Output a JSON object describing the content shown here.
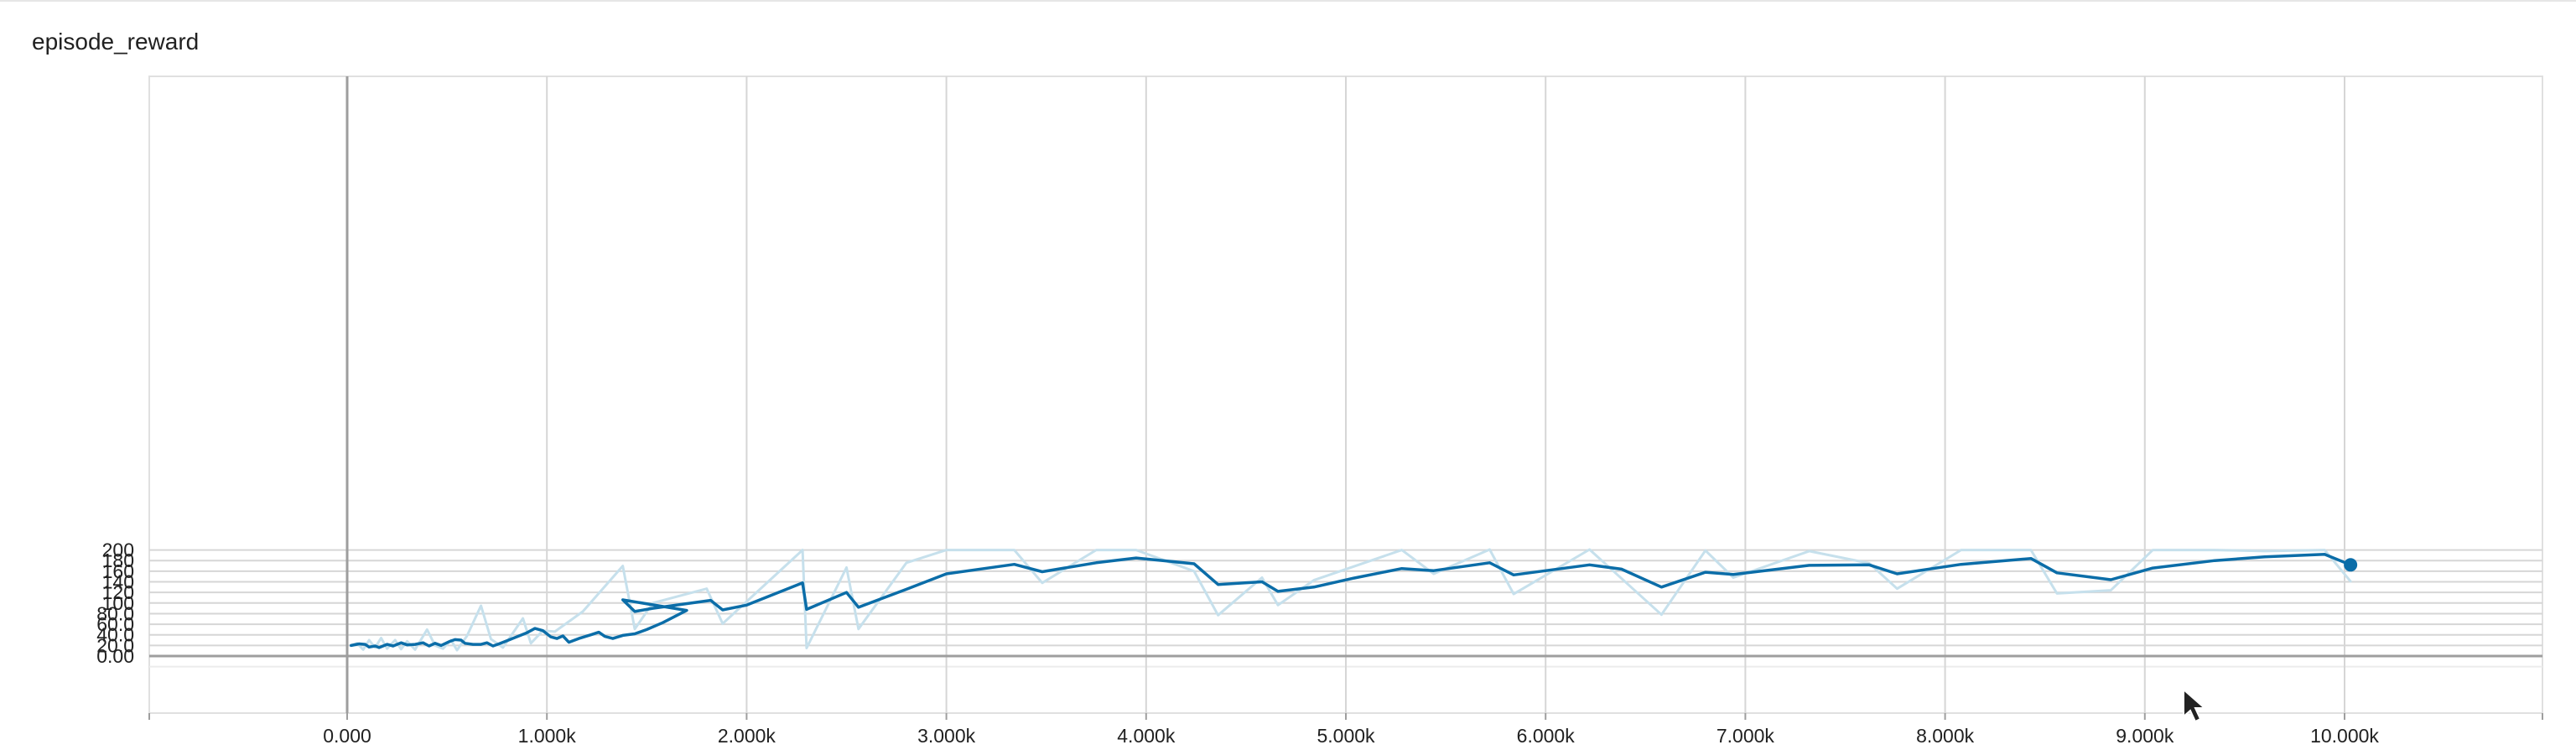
{
  "chart_data": {
    "type": "line",
    "title": "episode_reward",
    "xlabel": "",
    "ylabel": "",
    "xlim": [
      -1000,
      11100
    ],
    "ylim": [
      -20,
      220
    ],
    "grid": true,
    "x_ticks": [
      0,
      1000,
      2000,
      3000,
      4000,
      5000,
      6000,
      7000,
      8000,
      9000,
      10000
    ],
    "x_tick_labels": [
      "0.000",
      "1.000k",
      "2.000k",
      "3.000k",
      "4.000k",
      "5.000k",
      "6.000k",
      "7.000k",
      "8.000k",
      "9.000k",
      "10.000k"
    ],
    "y_ticks": [
      0,
      20,
      40,
      60,
      80,
      100,
      120,
      140,
      160,
      180,
      200
    ],
    "y_tick_labels": [
      "0.00",
      "20.0",
      "40.0",
      "60.0",
      "80.0",
      "100",
      "120",
      "140",
      "160",
      "180",
      "200"
    ],
    "series": [
      {
        "role": "raw",
        "color": "#c6e0ec",
        "points": [
          [
            20,
            20
          ],
          [
            50,
            24
          ],
          [
            80,
            12
          ],
          [
            110,
            30
          ],
          [
            140,
            16
          ],
          [
            170,
            34
          ],
          [
            200,
            14
          ],
          [
            240,
            30
          ],
          [
            270,
            13
          ],
          [
            300,
            28
          ],
          [
            340,
            12
          ],
          [
            400,
            50
          ],
          [
            440,
            20
          ],
          [
            480,
            14
          ],
          [
            520,
            30
          ],
          [
            550,
            11
          ],
          [
            600,
            38
          ],
          [
            670,
            95
          ],
          [
            720,
            32
          ],
          [
            780,
            16
          ],
          [
            880,
            71
          ],
          [
            920,
            24
          ],
          [
            980,
            48
          ],
          [
            1040,
            46
          ],
          [
            1180,
            84
          ],
          [
            1380,
            170
          ],
          [
            1440,
            51
          ],
          [
            1530,
            100
          ],
          [
            1800,
            127
          ],
          [
            1880,
            61
          ],
          [
            2280,
            200
          ],
          [
            2300,
            15
          ],
          [
            2500,
            167
          ],
          [
            2560,
            51
          ],
          [
            2800,
            176
          ],
          [
            3000,
            200
          ],
          [
            3340,
            200
          ],
          [
            3480,
            138
          ],
          [
            3750,
            200
          ],
          [
            3950,
            200
          ],
          [
            4240,
            160
          ],
          [
            4360,
            77
          ],
          [
            4580,
            148
          ],
          [
            4660,
            96
          ],
          [
            4840,
            143
          ],
          [
            5280,
            200
          ],
          [
            5440,
            155
          ],
          [
            5720,
            201
          ],
          [
            5840,
            117
          ],
          [
            6220,
            201
          ],
          [
            6580,
            78
          ],
          [
            6800,
            199
          ],
          [
            6940,
            148
          ],
          [
            7320,
            198
          ],
          [
            7620,
            175
          ],
          [
            7760,
            127
          ],
          [
            8080,
            200
          ],
          [
            8430,
            200
          ],
          [
            8560,
            118
          ],
          [
            8830,
            124
          ],
          [
            9040,
            200
          ],
          [
            9350,
            200
          ],
          [
            9600,
            198
          ],
          [
            9900,
            200
          ],
          [
            10030,
            141
          ]
        ]
      },
      {
        "role": "smoothed",
        "color": "#0b6da8",
        "points": [
          [
            20,
            20
          ],
          [
            60,
            23
          ],
          [
            90,
            22
          ],
          [
            110,
            17
          ],
          [
            140,
            19
          ],
          [
            160,
            16
          ],
          [
            200,
            22
          ],
          [
            230,
            19
          ],
          [
            270,
            25
          ],
          [
            300,
            21
          ],
          [
            340,
            22
          ],
          [
            380,
            25
          ],
          [
            410,
            19
          ],
          [
            440,
            24
          ],
          [
            470,
            20
          ],
          [
            510,
            27
          ],
          [
            540,
            31
          ],
          [
            570,
            30
          ],
          [
            590,
            24
          ],
          [
            630,
            22
          ],
          [
            670,
            22
          ],
          [
            700,
            25
          ],
          [
            730,
            19
          ],
          [
            760,
            23
          ],
          [
            800,
            29
          ],
          [
            900,
            44
          ],
          [
            940,
            52
          ],
          [
            980,
            48
          ],
          [
            1020,
            36
          ],
          [
            1050,
            33
          ],
          [
            1080,
            38
          ],
          [
            1110,
            26
          ],
          [
            1160,
            33
          ],
          [
            1220,
            40
          ],
          [
            1260,
            45
          ],
          [
            1290,
            37
          ],
          [
            1330,
            33
          ],
          [
            1380,
            39
          ],
          [
            1440,
            42
          ],
          [
            1500,
            50
          ],
          [
            1580,
            63
          ],
          [
            1700,
            86
          ],
          [
            1380,
            106
          ],
          [
            1440,
            84
          ],
          [
            1530,
            90
          ],
          [
            1820,
            105
          ],
          [
            1880,
            87
          ],
          [
            2000,
            96
          ],
          [
            2280,
            138
          ],
          [
            2300,
            88
          ],
          [
            2500,
            120
          ],
          [
            2560,
            92
          ],
          [
            2800,
            126
          ],
          [
            3000,
            155
          ],
          [
            3340,
            173
          ],
          [
            3480,
            159
          ],
          [
            3750,
            176
          ],
          [
            3950,
            185
          ],
          [
            4240,
            174
          ],
          [
            4360,
            135
          ],
          [
            4580,
            140
          ],
          [
            4660,
            122
          ],
          [
            4840,
            130
          ],
          [
            5040,
            147
          ],
          [
            5280,
            165
          ],
          [
            5440,
            161
          ],
          [
            5720,
            176
          ],
          [
            5840,
            153
          ],
          [
            6220,
            172
          ],
          [
            6380,
            164
          ],
          [
            6580,
            130
          ],
          [
            6800,
            158
          ],
          [
            6940,
            154
          ],
          [
            7320,
            171
          ],
          [
            7620,
            172
          ],
          [
            7760,
            155
          ],
          [
            8080,
            173
          ],
          [
            8430,
            184
          ],
          [
            8560,
            157
          ],
          [
            8830,
            144
          ],
          [
            9040,
            166
          ],
          [
            9350,
            180
          ],
          [
            9600,
            187
          ],
          [
            9900,
            192
          ],
          [
            10030,
            172
          ]
        ]
      }
    ]
  }
}
